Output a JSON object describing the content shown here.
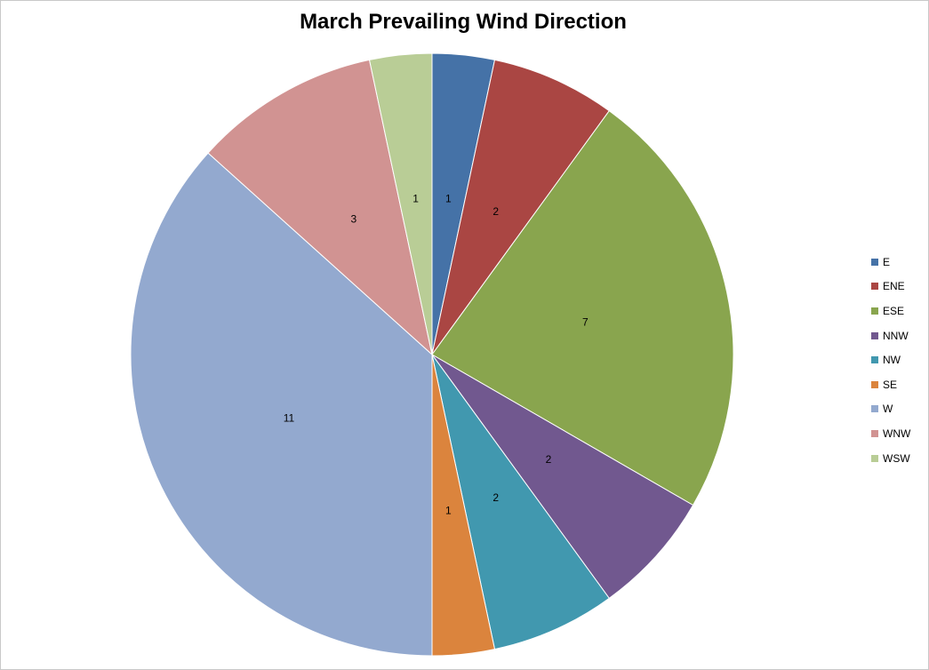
{
  "chart_data": {
    "type": "pie",
    "title": "March Prevailing Wind Direction",
    "categories": [
      "E",
      "ENE",
      "ESE",
      "NNW",
      "NW",
      "SE",
      "W",
      "WNW",
      "WSW"
    ],
    "values": [
      1,
      2,
      7,
      2,
      2,
      1,
      11,
      3,
      1
    ],
    "colors": [
      "#4572A7",
      "#AA4643",
      "#89A54E",
      "#71588F",
      "#4198AF",
      "#DB843D",
      "#93A9CF",
      "#D19392",
      "#B9CD96"
    ],
    "start_angle": "12 o'clock",
    "direction": "clockwise",
    "data_labels": "values",
    "legend_position": "right"
  }
}
